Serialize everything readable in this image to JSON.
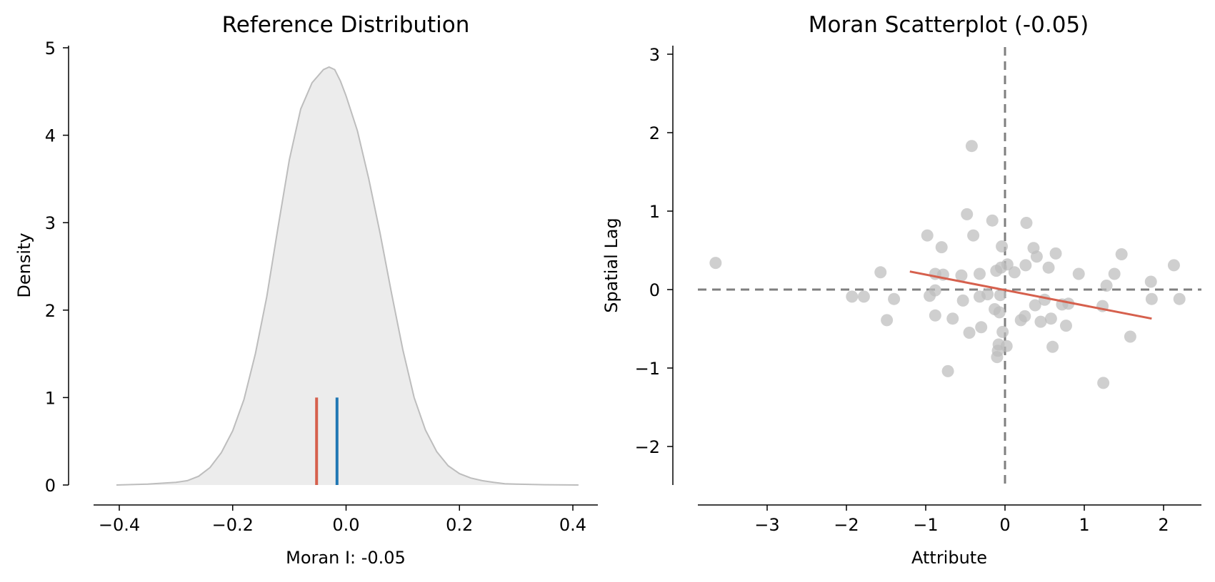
{
  "chart_data": [
    {
      "type": "area",
      "title": "Reference Distribution",
      "xlabel": "Moran I: -0.05",
      "ylabel": "Density",
      "xlim": [
        -0.45,
        0.45
      ],
      "ylim": [
        0,
        5
      ],
      "xticks": [
        -0.4,
        -0.2,
        0.0,
        0.2,
        0.4
      ],
      "xtick_labels": [
        "−0.4",
        "−0.2",
        "0.0",
        "0.2",
        "0.4"
      ],
      "yticks": [
        0,
        1,
        2,
        3,
        4,
        5
      ],
      "ytick_labels": [
        "0",
        "1",
        "2",
        "3",
        "4",
        "5"
      ],
      "density": {
        "x": [
          -0.405,
          -0.35,
          -0.3,
          -0.28,
          -0.26,
          -0.24,
          -0.22,
          -0.2,
          -0.18,
          -0.16,
          -0.14,
          -0.12,
          -0.1,
          -0.08,
          -0.06,
          -0.04,
          -0.03,
          -0.02,
          -0.01,
          0.0,
          0.02,
          0.04,
          0.06,
          0.08,
          0.1,
          0.12,
          0.14,
          0.16,
          0.18,
          0.2,
          0.22,
          0.24,
          0.26,
          0.28,
          0.3,
          0.35,
          0.41
        ],
        "y": [
          0.0,
          0.01,
          0.03,
          0.05,
          0.1,
          0.2,
          0.37,
          0.62,
          0.98,
          1.5,
          2.15,
          2.95,
          3.72,
          4.3,
          4.6,
          4.75,
          4.78,
          4.75,
          4.62,
          4.45,
          4.05,
          3.5,
          2.88,
          2.2,
          1.55,
          1.0,
          0.63,
          0.38,
          0.22,
          0.13,
          0.08,
          0.05,
          0.03,
          0.015,
          0.01,
          0.003,
          0.0
        ]
      },
      "markers": [
        {
          "name": "observed",
          "x": -0.052,
          "height": 1,
          "color": "#d6604d"
        },
        {
          "name": "expected",
          "x": -0.016,
          "height": 1,
          "color": "#1f77b4"
        }
      ],
      "fill_color": "#ececec",
      "line_color": "#bdbdbd"
    },
    {
      "type": "scatter",
      "title": "Moran Scatterplot (-0.05)",
      "xlabel": "Attribute",
      "ylabel": "Spatial Lag",
      "xlim": [
        -3.8,
        2.5
      ],
      "ylim": [
        -2.5,
        3.1
      ],
      "xticks": [
        -3,
        -2,
        -1,
        0,
        1,
        2
      ],
      "xtick_labels": [
        "−3",
        "−2",
        "−1",
        "0",
        "1",
        "2"
      ],
      "yticks": [
        -2,
        -1,
        0,
        1,
        2,
        3
      ],
      "ytick_labels": [
        "−2",
        "−1",
        "0",
        "1",
        "2",
        "3"
      ],
      "point_color": "#bdbdbd",
      "fit_color": "#d6604d",
      "guide_color": "#7f7f7f",
      "fit_line": {
        "x": [
          -1.2,
          1.85
        ],
        "y": [
          0.23,
          -0.37
        ]
      },
      "points": [
        {
          "x": -3.65,
          "y": 0.34
        },
        {
          "x": -1.93,
          "y": -0.09
        },
        {
          "x": -1.78,
          "y": -0.09
        },
        {
          "x": -1.57,
          "y": 0.22
        },
        {
          "x": -1.49,
          "y": -0.39
        },
        {
          "x": -1.4,
          "y": -0.12
        },
        {
          "x": -0.98,
          "y": 0.69
        },
        {
          "x": -0.88,
          "y": 0.2
        },
        {
          "x": -0.8,
          "y": 0.54
        },
        {
          "x": -0.78,
          "y": 0.19
        },
        {
          "x": -0.95,
          "y": -0.08
        },
        {
          "x": -0.88,
          "y": -0.01
        },
        {
          "x": -0.88,
          "y": -0.33
        },
        {
          "x": -0.72,
          "y": -1.04
        },
        {
          "x": -0.66,
          "y": -0.37
        },
        {
          "x": -0.55,
          "y": 0.18
        },
        {
          "x": -0.53,
          "y": -0.14
        },
        {
          "x": -0.48,
          "y": 0.96
        },
        {
          "x": -0.45,
          "y": -0.55
        },
        {
          "x": -0.42,
          "y": 1.83
        },
        {
          "x": -0.4,
          "y": 0.69
        },
        {
          "x": -0.32,
          "y": 0.2
        },
        {
          "x": -0.32,
          "y": -0.09
        },
        {
          "x": -0.3,
          "y": -0.48
        },
        {
          "x": -0.22,
          "y": -0.06
        },
        {
          "x": -0.16,
          "y": 0.88
        },
        {
          "x": -0.13,
          "y": -0.25
        },
        {
          "x": -0.11,
          "y": 0.24
        },
        {
          "x": -0.1,
          "y": -0.86
        },
        {
          "x": -0.09,
          "y": -0.78
        },
        {
          "x": -0.08,
          "y": -0.7
        },
        {
          "x": -0.07,
          "y": -0.29
        },
        {
          "x": -0.06,
          "y": -0.07
        },
        {
          "x": -0.05,
          "y": 0.28
        },
        {
          "x": -0.04,
          "y": 0.55
        },
        {
          "x": -0.03,
          "y": -0.54
        },
        {
          "x": 0.02,
          "y": -0.72
        },
        {
          "x": 0.03,
          "y": 0.32
        },
        {
          "x": 0.12,
          "y": 0.22
        },
        {
          "x": 0.2,
          "y": -0.39
        },
        {
          "x": 0.25,
          "y": -0.34
        },
        {
          "x": 0.26,
          "y": 0.31
        },
        {
          "x": 0.27,
          "y": 0.85
        },
        {
          "x": 0.36,
          "y": 0.53
        },
        {
          "x": 0.38,
          "y": -0.2
        },
        {
          "x": 0.4,
          "y": 0.42
        },
        {
          "x": 0.45,
          "y": -0.41
        },
        {
          "x": 0.5,
          "y": -0.13
        },
        {
          "x": 0.55,
          "y": 0.28
        },
        {
          "x": 0.58,
          "y": -0.37
        },
        {
          "x": 0.6,
          "y": -0.73
        },
        {
          "x": 0.64,
          "y": 0.46
        },
        {
          "x": 0.72,
          "y": -0.19
        },
        {
          "x": 0.77,
          "y": -0.46
        },
        {
          "x": 0.8,
          "y": -0.18
        },
        {
          "x": 0.93,
          "y": 0.2
        },
        {
          "x": 1.23,
          "y": -0.21
        },
        {
          "x": 1.24,
          "y": -1.19
        },
        {
          "x": 1.28,
          "y": 0.05
        },
        {
          "x": 1.38,
          "y": 0.2
        },
        {
          "x": 1.47,
          "y": 0.45
        },
        {
          "x": 1.58,
          "y": -0.6
        },
        {
          "x": 1.84,
          "y": 0.1
        },
        {
          "x": 1.85,
          "y": -0.12
        },
        {
          "x": 2.13,
          "y": 0.31
        },
        {
          "x": 2.2,
          "y": -0.12
        }
      ]
    }
  ]
}
